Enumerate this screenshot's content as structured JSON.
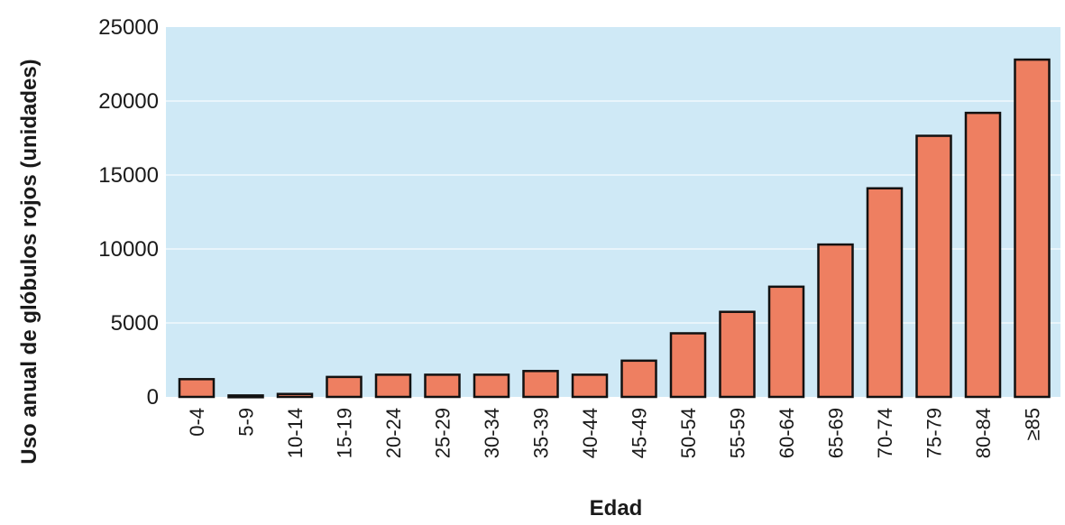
{
  "chart_data": {
    "type": "bar",
    "title": "",
    "xlabel": "Edad",
    "ylabel": "Uso anual de glóbulos rojos (unidades)",
    "ylim": [
      0,
      25000
    ],
    "yticks": [
      "0",
      "5000",
      "10000",
      "15000",
      "20000",
      "25000"
    ],
    "categories": [
      "0-4",
      "5-9",
      "10-14",
      "15-19",
      "20-24",
      "25-29",
      "30-34",
      "35-39",
      "40-44",
      "45-49",
      "50-54",
      "55-59",
      "60-64",
      "65-69",
      "70-74",
      "75-79",
      "80-84",
      "≥85"
    ],
    "values": [
      1200,
      100,
      200,
      1350,
      1500,
      1500,
      1500,
      1750,
      1500,
      2450,
      4300,
      5750,
      7450,
      10300,
      14100,
      17650,
      19200,
      22800
    ],
    "grid": true,
    "colors": {
      "plot_background": "#cfe9f6",
      "bar_fill": "#ee7f61",
      "bar_stroke": "#111111",
      "gridline": "#e9f5fb"
    }
  }
}
